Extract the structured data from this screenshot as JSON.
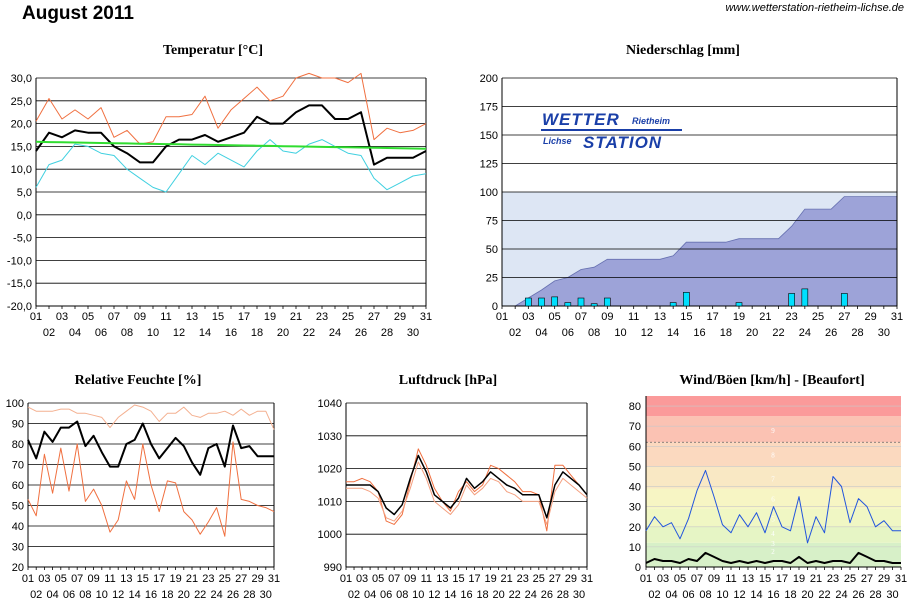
{
  "page": {
    "title": "August 2011",
    "url": "www.wetterstation-rietheim-lichse.de"
  },
  "logo": {
    "line1": "WETTER",
    "sub1": "Rietheim",
    "line2": "STATION",
    "sub2": "Lichse"
  },
  "chart_data": [
    {
      "id": "temp",
      "type": "line",
      "title": "Temperatur [°C]",
      "ylim": [
        -20,
        30
      ],
      "yticks": [
        "-20,0",
        "-15,0",
        "-10,0",
        "-5,0",
        "0,0",
        "5,0",
        "10,0",
        "15,0",
        "20,0",
        "25,0",
        "30,0"
      ],
      "x": [
        1,
        2,
        3,
        4,
        5,
        6,
        7,
        8,
        9,
        10,
        11,
        12,
        13,
        14,
        15,
        16,
        17,
        18,
        19,
        20,
        21,
        22,
        23,
        24,
        25,
        26,
        27,
        28,
        29,
        30,
        31
      ],
      "series": [
        {
          "color": "#f07040",
          "values": [
            20.5,
            25.5,
            21,
            23,
            21,
            23.5,
            17,
            18.5,
            15.5,
            16,
            21.5,
            21.5,
            22,
            26,
            19,
            23,
            25.5,
            28,
            25,
            26,
            30,
            31,
            30,
            30,
            29,
            31,
            16.5,
            19,
            18,
            18.5,
            20
          ]
        },
        {
          "color": "#000000",
          "values": [
            14,
            18,
            17,
            18.5,
            18,
            18,
            15,
            13.5,
            11.5,
            11.5,
            15,
            16.5,
            16.5,
            17.5,
            16,
            17,
            18,
            21.5,
            20,
            20,
            22.5,
            24,
            24,
            21,
            21,
            22.5,
            11,
            12.5,
            12.5,
            12.5,
            14
          ]
        },
        {
          "color": "#40d0e0",
          "values": [
            6,
            11,
            12,
            15.5,
            15,
            13.5,
            13,
            10,
            8,
            6,
            5,
            9,
            13,
            11,
            13.5,
            12,
            10.5,
            14,
            16.5,
            14,
            13.5,
            15.5,
            16.5,
            15,
            13.5,
            13,
            8,
            5.5,
            7,
            8.5,
            9
          ]
        },
        {
          "color": "#30dd30",
          "values": [
            16,
            15.95,
            15.9,
            15.85,
            15.8,
            15.75,
            15.7,
            15.65,
            15.6,
            15.55,
            15.5,
            15.45,
            15.4,
            15.35,
            15.3,
            15.25,
            15.2,
            15.15,
            15.1,
            15.05,
            15,
            14.95,
            14.9,
            14.85,
            14.8,
            14.75,
            14.7,
            14.65,
            14.6,
            14.55,
            14.5
          ]
        }
      ]
    },
    {
      "id": "rain",
      "type": "bar",
      "title": "Niederschlag [mm]",
      "ylim": [
        0,
        200
      ],
      "yticks": [
        "0",
        "25",
        "50",
        "75",
        "100",
        "125",
        "150",
        "175",
        "200"
      ],
      "x": [
        1,
        2,
        3,
        4,
        5,
        6,
        7,
        8,
        9,
        10,
        11,
        12,
        13,
        14,
        15,
        16,
        17,
        18,
        19,
        20,
        21,
        22,
        23,
        24,
        25,
        26,
        27,
        28,
        29,
        30,
        31
      ],
      "daily": [
        0,
        0,
        7,
        7,
        8,
        3,
        7,
        2,
        7,
        0,
        0,
        0,
        0,
        3,
        12,
        0,
        0,
        0,
        3,
        0,
        0,
        0,
        11,
        15,
        0,
        0,
        11,
        0,
        0,
        0,
        0
      ],
      "cumulative": [
        0,
        0,
        7,
        14,
        22,
        25,
        32,
        34,
        41,
        41,
        41,
        41,
        41,
        44,
        56,
        56,
        56,
        56,
        59,
        59,
        59,
        59,
        70,
        85,
        85,
        85,
        96,
        96,
        96,
        96,
        96
      ],
      "colors": {
        "bar": "#00e0ff",
        "area": "#9da3d8",
        "band": "#dde6f4"
      }
    },
    {
      "id": "hum",
      "type": "line",
      "title": "Relative Feuchte [%]",
      "ylim": [
        20,
        100
      ],
      "yticks": [
        "20",
        "30",
        "40",
        "50",
        "60",
        "70",
        "80",
        "90",
        "100"
      ],
      "x": [
        1,
        2,
        3,
        4,
        5,
        6,
        7,
        8,
        9,
        10,
        11,
        12,
        13,
        14,
        15,
        16,
        17,
        18,
        19,
        20,
        21,
        22,
        23,
        24,
        25,
        26,
        27,
        28,
        29,
        30,
        31
      ],
      "series": [
        {
          "color": "#f4b090",
          "values": [
            98,
            96,
            96,
            96,
            97,
            97,
            95,
            95,
            94,
            93,
            88,
            93,
            96,
            99,
            98,
            96,
            91,
            95,
            95,
            98,
            94,
            93,
            95,
            95,
            96,
            94,
            97,
            94,
            96,
            96,
            87
          ]
        },
        {
          "color": "#000000",
          "values": [
            82,
            73,
            86,
            81,
            88,
            88,
            91,
            79,
            84,
            76,
            69,
            69,
            80,
            82,
            90,
            80,
            73,
            78,
            83,
            79,
            71,
            65,
            78,
            80,
            69,
            89,
            78,
            79,
            74,
            74,
            74
          ]
        },
        {
          "color": "#f07040",
          "values": [
            53,
            45,
            75,
            56,
            78,
            57,
            80,
            52,
            58,
            50,
            37,
            43,
            62,
            53,
            80,
            60,
            47,
            62,
            61,
            47,
            43,
            36,
            42,
            49,
            35,
            81,
            53,
            52,
            50,
            49,
            47
          ]
        }
      ]
    },
    {
      "id": "press",
      "type": "line",
      "title": "Luftdruck [hPa]",
      "ylim": [
        990,
        1040
      ],
      "yticks": [
        "990",
        "1000",
        "1010",
        "1020",
        "1030",
        "1040"
      ],
      "x": [
        1,
        2,
        3,
        4,
        5,
        6,
        7,
        8,
        9,
        10,
        11,
        12,
        13,
        14,
        15,
        16,
        17,
        18,
        19,
        20,
        21,
        22,
        23,
        24,
        25,
        26,
        27,
        28,
        29,
        30,
        31
      ],
      "series": [
        {
          "color": "#f07040",
          "values": [
            1016,
            1016,
            1017,
            1016,
            1013,
            1004,
            1003,
            1006,
            1016,
            1026,
            1021,
            1014,
            1010,
            1007,
            1013,
            1016,
            1013,
            1015,
            1021,
            1020,
            1018,
            1016,
            1013,
            1013,
            1012,
            1001,
            1021,
            1021,
            1018,
            1015,
            1012
          ]
        },
        {
          "color": "#000000",
          "values": [
            1015,
            1015,
            1015,
            1015,
            1013,
            1008,
            1006,
            1009,
            1017,
            1024,
            1019,
            1012,
            1010,
            1008,
            1011,
            1017,
            1014,
            1016,
            1019,
            1017,
            1015,
            1014,
            1012,
            1012,
            1012,
            1005,
            1015,
            1019,
            1017,
            1015,
            1012
          ]
        },
        {
          "color": "#f4a080",
          "values": [
            1014,
            1014,
            1014,
            1013,
            1011,
            1005,
            1004,
            1007,
            1014,
            1022,
            1017,
            1010,
            1008,
            1006,
            1009,
            1015,
            1012,
            1014,
            1017,
            1016,
            1013,
            1012,
            1010,
            1010,
            1010,
            1003,
            1013,
            1017,
            1015,
            1013,
            1011
          ]
        }
      ]
    },
    {
      "id": "wind",
      "type": "line",
      "title": "Wind/Böen [km/h] - [Beaufort]",
      "ylim": [
        0,
        85
      ],
      "yticks": [
        "0",
        "10",
        "20",
        "30",
        "40",
        "50",
        "60",
        "70",
        "80"
      ],
      "x": [
        1,
        2,
        3,
        4,
        5,
        6,
        7,
        8,
        9,
        10,
        11,
        12,
        13,
        14,
        15,
        16,
        17,
        18,
        19,
        20,
        21,
        22,
        23,
        24,
        25,
        26,
        27,
        28,
        29,
        30,
        31
      ],
      "beaufort_labels": [
        "2",
        "3",
        "4",
        "5",
        "6",
        "7",
        "8",
        "9"
      ],
      "series": [
        {
          "color": "#2255dd",
          "values": [
            18,
            25,
            20,
            22,
            14,
            24,
            38,
            48,
            35,
            21,
            17,
            26,
            20,
            27,
            17,
            30,
            20,
            18,
            35,
            12,
            25,
            17,
            45,
            40,
            22,
            34,
            30,
            20,
            23,
            18,
            18
          ]
        },
        {
          "color": "#000000",
          "values": [
            2,
            4,
            3,
            3,
            2,
            4,
            3,
            7,
            5,
            3,
            2,
            3,
            2,
            3,
            2,
            3,
            3,
            2,
            5,
            2,
            3,
            2,
            3,
            3,
            2,
            7,
            5,
            3,
            3,
            2,
            2
          ]
        }
      ]
    }
  ]
}
